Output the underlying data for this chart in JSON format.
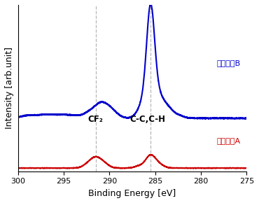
{
  "xlabel": "Binding Energy [eV]",
  "ylabel": "Intensity [arb.unit]",
  "xlim": [
    300,
    275
  ],
  "xticks": [
    300,
    295,
    290,
    285,
    280,
    275
  ],
  "vline1": 291.5,
  "vline2": 285.5,
  "label_A": "ナノシリA",
  "label_B": "ナノシリB",
  "color_A": "#cc0000",
  "color_B": "#0000cc",
  "annot_cf2": "CF₂",
  "annot_cch": "C-C,C-H",
  "background": "#ffffff"
}
